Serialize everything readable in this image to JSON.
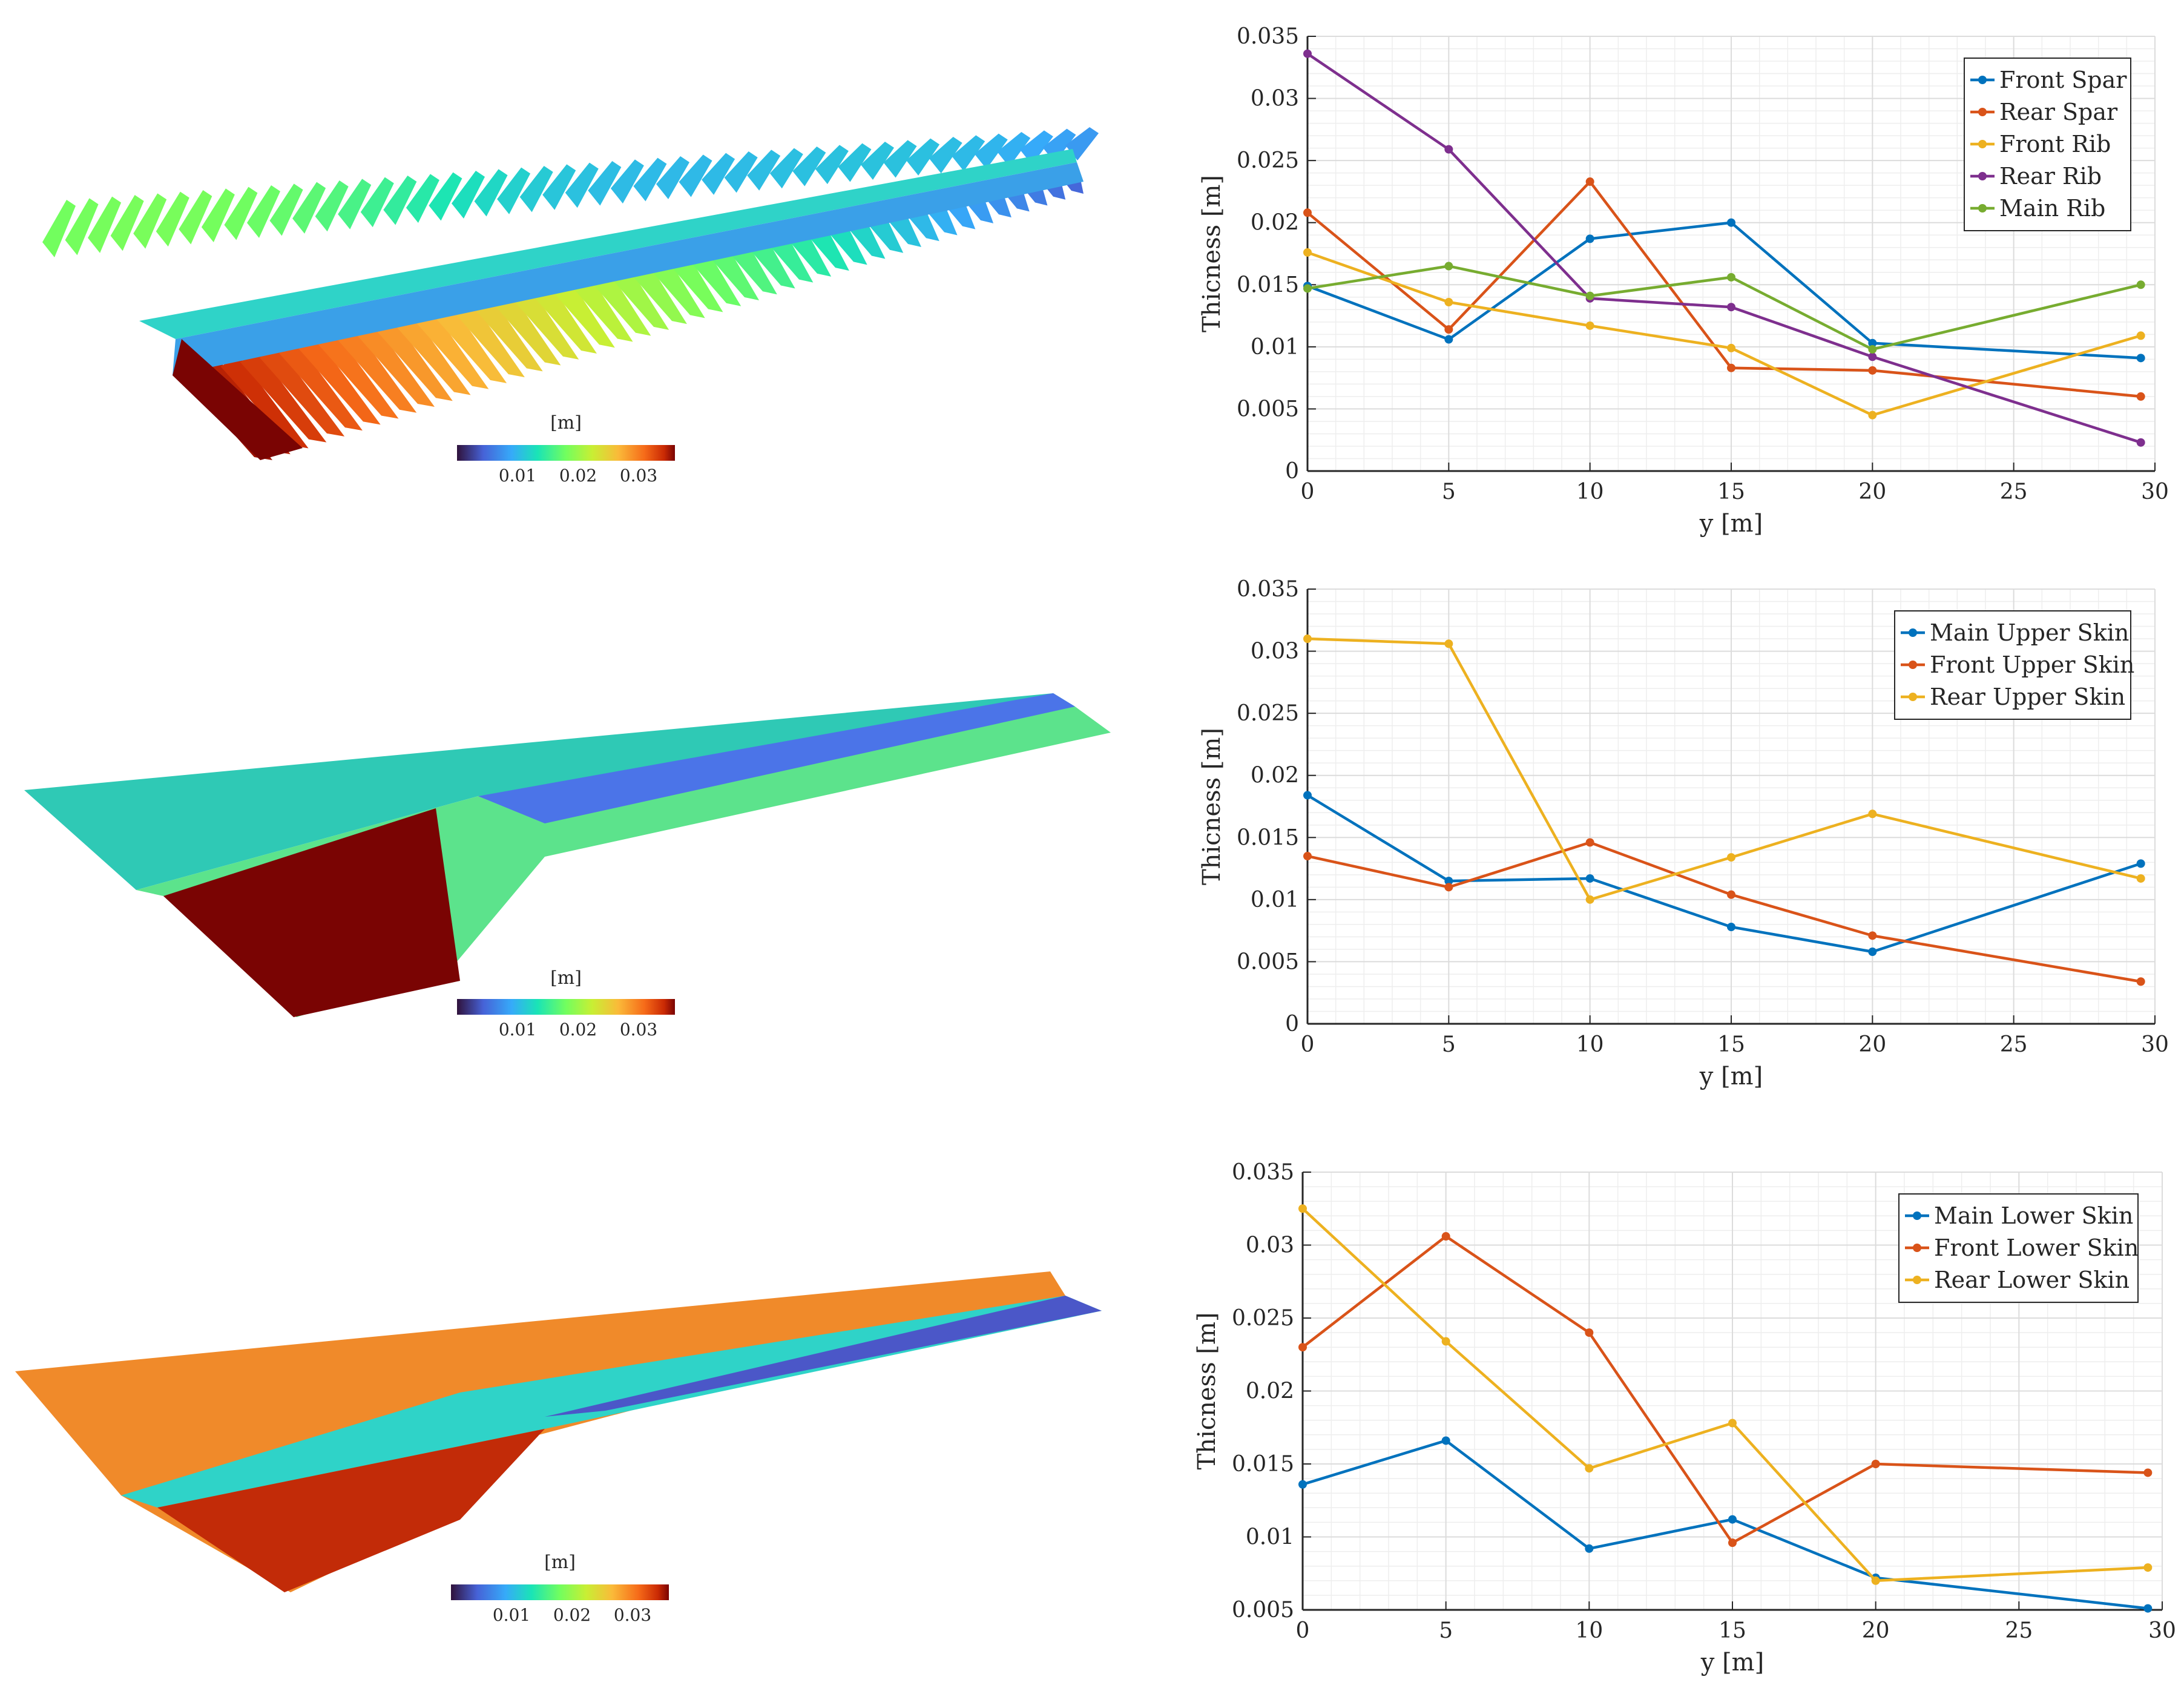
{
  "colorbar": {
    "unit_label": "[m]",
    "ticks": [
      {
        "value": 0.01,
        "label": "0.01"
      },
      {
        "value": 0.02,
        "label": "0.02"
      },
      {
        "value": 0.03,
        "label": "0.03"
      }
    ],
    "range": [
      0.0,
      0.036
    ]
  },
  "contour_panels": [
    {
      "name": "ribs-spars-contour",
      "description_unit": "[m]"
    },
    {
      "name": "upper-skin-contour",
      "description_unit": "[m]"
    },
    {
      "name": "lower-skin-contour",
      "description_unit": "[m]"
    }
  ],
  "colors": {
    "blue": "#0072BD",
    "orange": "#D95319",
    "yellow": "#EDB120",
    "purple": "#7E2F8E",
    "green": "#77AC30",
    "grid_minor": "#eeeeee",
    "grid_major": "#dcdcdc",
    "axis": "#262626"
  },
  "chart_data": [
    {
      "type": "line",
      "title": "",
      "xlabel": "y [m]",
      "ylabel": "Thicness [m]",
      "xlim": [
        0,
        30
      ],
      "ylim": [
        0,
        0.035
      ],
      "xticks": [
        0,
        5,
        10,
        15,
        20,
        25,
        30
      ],
      "xtick_labels": [
        "0",
        "5",
        "10",
        "15",
        "20",
        "25",
        "30"
      ],
      "yticks": [
        0,
        0.005,
        0.01,
        0.015,
        0.02,
        0.025,
        0.03,
        0.035
      ],
      "ytick_labels": [
        "0",
        "0.005",
        "0.01",
        "0.015",
        "0.02",
        "0.025",
        "0.03",
        "0.035"
      ],
      "x": [
        0,
        5,
        10,
        15,
        20,
        29.5
      ],
      "legend_position": "top-right",
      "grid": true,
      "series": [
        {
          "name": "Front Spar",
          "color": "#0072BD",
          "values": [
            0.0149,
            0.0106,
            0.0187,
            0.02,
            0.0103,
            0.0091
          ]
        },
        {
          "name": "Rear Spar",
          "color": "#D95319",
          "values": [
            0.0208,
            0.0114,
            0.0233,
            0.0083,
            0.0081,
            0.006
          ]
        },
        {
          "name": "Front Rib",
          "color": "#EDB120",
          "values": [
            0.0176,
            0.0136,
            0.0117,
            0.0099,
            0.0045,
            0.0109
          ]
        },
        {
          "name": "Rear Rib",
          "color": "#7E2F8E",
          "values": [
            0.0336,
            0.0259,
            0.0139,
            0.0132,
            0.0092,
            0.0023
          ]
        },
        {
          "name": "Main Rib",
          "color": "#77AC30",
          "values": [
            0.0147,
            0.0165,
            0.0141,
            0.0156,
            0.0098,
            0.015
          ]
        }
      ]
    },
    {
      "type": "line",
      "title": "",
      "xlabel": "y [m]",
      "ylabel": "Thicness [m]",
      "xlim": [
        0,
        30
      ],
      "ylim": [
        0,
        0.035
      ],
      "xticks": [
        0,
        5,
        10,
        15,
        20,
        25,
        30
      ],
      "xtick_labels": [
        "0",
        "5",
        "10",
        "15",
        "20",
        "25",
        "30"
      ],
      "yticks": [
        0,
        0.005,
        0.01,
        0.015,
        0.02,
        0.025,
        0.03,
        0.035
      ],
      "ytick_labels": [
        "0",
        "0.005",
        "0.01",
        "0.015",
        "0.02",
        "0.025",
        "0.03",
        "0.035"
      ],
      "x": [
        0,
        5,
        10,
        15,
        20,
        29.5
      ],
      "legend_position": "top-right",
      "grid": true,
      "series": [
        {
          "name": "Main Upper Skin",
          "color": "#0072BD",
          "values": [
            0.0184,
            0.0115,
            0.0117,
            0.0078,
            0.0058,
            0.0129
          ]
        },
        {
          "name": "Front Upper Skin",
          "color": "#D95319",
          "values": [
            0.0135,
            0.011,
            0.0146,
            0.0104,
            0.0071,
            0.0034
          ]
        },
        {
          "name": "Rear Upper Skin",
          "color": "#EDB120",
          "values": [
            0.031,
            0.0306,
            0.01,
            0.0134,
            0.0169,
            0.0117
          ]
        }
      ]
    },
    {
      "type": "line",
      "title": "",
      "xlabel": "y [m]",
      "ylabel": "Thicness [m]",
      "xlim": [
        0,
        30
      ],
      "ylim": [
        0.005,
        0.035
      ],
      "xticks": [
        0,
        5,
        10,
        15,
        20,
        25,
        30
      ],
      "xtick_labels": [
        "0",
        "5",
        "10",
        "15",
        "20",
        "25",
        "30"
      ],
      "yticks": [
        0.005,
        0.01,
        0.015,
        0.02,
        0.025,
        0.03,
        0.035
      ],
      "ytick_labels": [
        "0.005",
        "0.01",
        "0.015",
        "0.02",
        "0.025",
        "0.03",
        "0.035"
      ],
      "x": [
        0,
        5,
        10,
        15,
        20,
        29.5
      ],
      "legend_position": "top-right",
      "grid": true,
      "series": [
        {
          "name": "Main Lower Skin",
          "color": "#0072BD",
          "values": [
            0.0136,
            0.0166,
            0.0092,
            0.0112,
            0.0072,
            0.0051
          ]
        },
        {
          "name": "Front Lower Skin",
          "color": "#D95319",
          "values": [
            0.023,
            0.0306,
            0.024,
            0.0096,
            0.015,
            0.0144
          ]
        },
        {
          "name": "Rear Lower Skin",
          "color": "#EDB120",
          "values": [
            0.0325,
            0.0234,
            0.0147,
            0.0178,
            0.007,
            0.0079
          ]
        }
      ]
    }
  ]
}
